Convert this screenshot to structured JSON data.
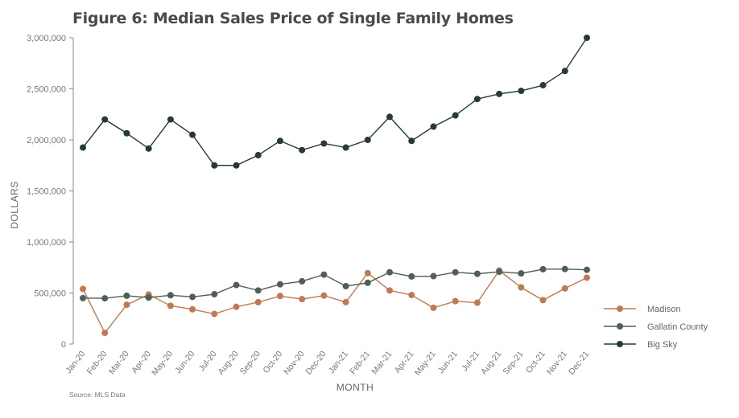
{
  "chart_data": {
    "type": "line",
    "title": "Figure 6: Median Sales Price of Single Family Homes",
    "xlabel": "MONTH",
    "ylabel": "DOLLARS",
    "ylim": [
      0,
      3000000
    ],
    "yticks": [
      0,
      500000,
      1000000,
      1500000,
      2000000,
      2500000,
      3000000
    ],
    "ytick_labels": [
      "0",
      "500,000",
      "1,000,000",
      "1,500,000",
      "2,000,000",
      "2,500,000",
      "3,000,000"
    ],
    "categories": [
      "Jan-20",
      "Feb-20",
      "Mar-20",
      "Apr-20",
      "May-20",
      "Jun-20",
      "Jul-20",
      "Aug-20",
      "Sep-20",
      "Oct-20",
      "Nov-20",
      "Dec-20",
      "Jan-21",
      "Feb-21",
      "Mar-21",
      "Apr-21",
      "May-21",
      "Jun-21",
      "Jul-21",
      "Aug-21",
      "Sep-21",
      "Oct-21",
      "Nov-21",
      "Dec-21"
    ],
    "series": [
      {
        "name": "Madison",
        "color": "#c07a52",
        "values": [
          540000,
          110000,
          385000,
          485000,
          375000,
          340000,
          295000,
          365000,
          410000,
          470000,
          440000,
          475000,
          410000,
          695000,
          525000,
          480000,
          355000,
          420000,
          405000,
          720000,
          555000,
          430000,
          545000,
          650000
        ]
      },
      {
        "name": "Gallatin County",
        "color": "#4f5e58",
        "values": [
          450000,
          448000,
          473000,
          455000,
          478000,
          462000,
          488000,
          578000,
          525000,
          585000,
          615000,
          680000,
          567000,
          600000,
          703000,
          662000,
          665000,
          703000,
          688000,
          708000,
          692000,
          733000,
          735000,
          727000
        ]
      },
      {
        "name": "Big Sky",
        "color": "#263a37",
        "values": [
          1925000,
          2200000,
          2065000,
          1915000,
          2200000,
          2050000,
          1750000,
          1750000,
          1850000,
          1990000,
          1900000,
          1965000,
          1925000,
          2000000,
          2225000,
          1990000,
          2130000,
          2240000,
          2400000,
          2450000,
          2480000,
          2535000,
          2675000,
          3000000
        ]
      }
    ],
    "legend_position": "right",
    "source": "Source: MLS Data"
  }
}
